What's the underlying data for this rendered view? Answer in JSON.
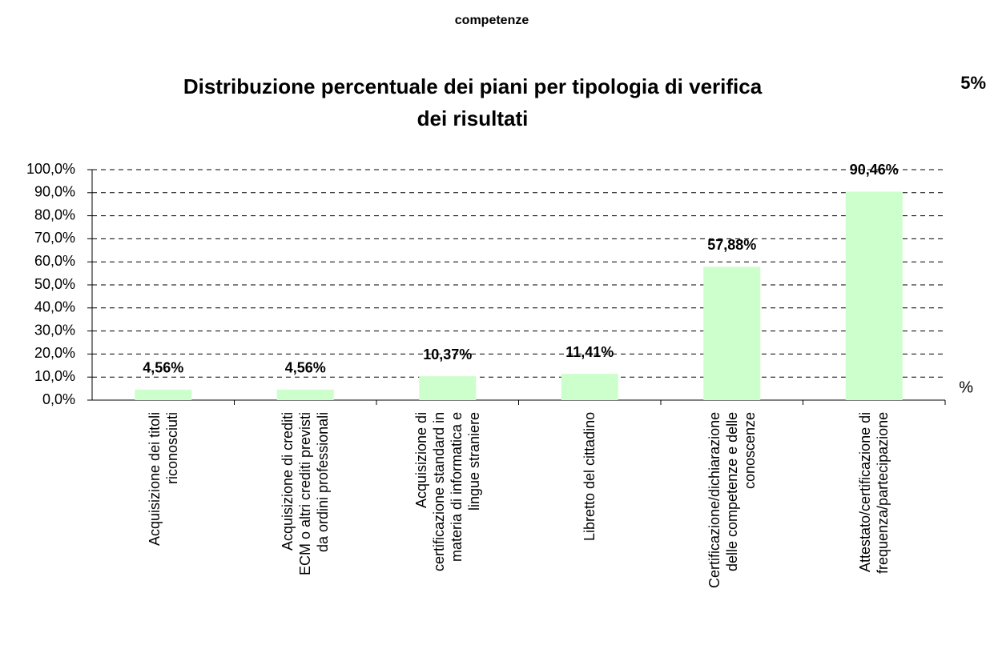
{
  "chart_data": {
    "type": "bar",
    "fragments": [
      "competenze",
      "5%",
      "%"
    ],
    "title": "Distribuzione percentuale dei piani per tipologia di verifica dei risultati",
    "categories": [
      "Acquisizione dei titoli\nriconosciuti",
      "Acquisizione di crediti\nECM o altri crediti previsti\nda ordini professionali",
      "Acquisizione di\ncertificazione standard in\nmateria di informatica e\nlingue straniere",
      "Libretto del cittadino",
      "Certificazione/dichiarazione\ndelle competenze e delle\nconoscenze",
      "Attestato/certificazione di\nfrequenza/partecipazione"
    ],
    "values": [
      4.56,
      4.56,
      10.37,
      11.41,
      57.88,
      90.46
    ],
    "value_labels": [
      "4,56%",
      "4,56%",
      "10,37%",
      "11,41%",
      "57,88%",
      "90,46%"
    ],
    "color": "#ccffcc",
    "ylim": [
      0,
      100
    ],
    "yticks": [
      {
        "value": 0,
        "label": "0,0%"
      },
      {
        "value": 10,
        "label": "10,0%"
      },
      {
        "value": 20,
        "label": "20,0%"
      },
      {
        "value": 30,
        "label": "30,0%"
      },
      {
        "value": 40,
        "label": "40,0%"
      },
      {
        "value": 50,
        "label": "50,0%"
      },
      {
        "value": 60,
        "label": "60,0%"
      },
      {
        "value": 70,
        "label": "70,0%"
      },
      {
        "value": 80,
        "label": "80,0%"
      },
      {
        "value": 90,
        "label": "90,0%"
      },
      {
        "value": 100,
        "label": "100,0%"
      }
    ],
    "grid": true
  }
}
